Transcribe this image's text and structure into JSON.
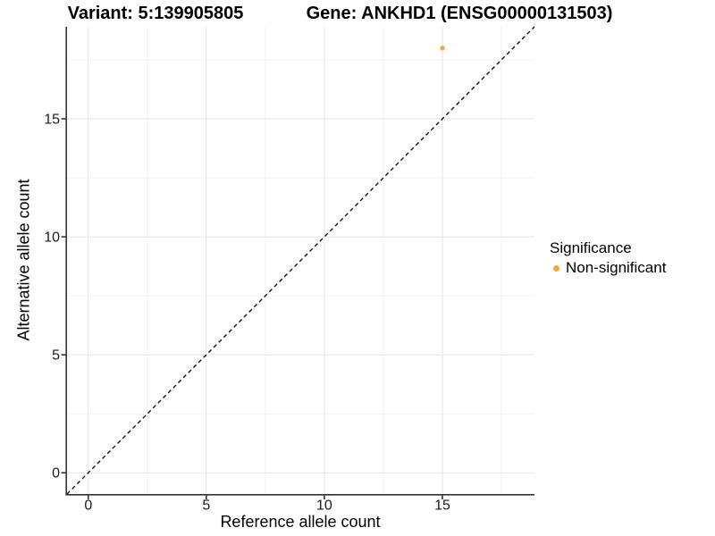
{
  "titles": {
    "variant": "Variant: 5:139905805",
    "gene": "Gene: ANKHD1 (ENSG00000131503)"
  },
  "legend": {
    "title": "Significance",
    "items": [
      {
        "label": "Non-significant",
        "color": "#FAA43C"
      }
    ]
  },
  "chart_data": {
    "type": "scatter",
    "titles": [
      "Variant: 5:139905805",
      "Gene: ANKHD1 (ENSG00000131503)"
    ],
    "xlabel": "Reference allele count",
    "ylabel": "Alternative allele count",
    "xlim": [
      -0.9,
      18.9
    ],
    "ylim": [
      -0.9,
      18.9
    ],
    "x_ticks": [
      0,
      5,
      10,
      15
    ],
    "y_ticks": [
      0,
      5,
      10,
      15
    ],
    "x_minor_ticks": [
      2.5,
      7.5,
      12.5,
      17.5
    ],
    "y_minor_ticks": [
      2.5,
      7.5,
      12.5,
      17.5
    ],
    "grid": "major and minor gridlines on white background",
    "legend_position": "right",
    "legend_title": "Significance",
    "series": [
      {
        "name": "Non-significant",
        "color": "#FAA43C",
        "points": [
          {
            "x": 15,
            "y": 18
          }
        ]
      }
    ],
    "reference_line": {
      "kind": "identity y=x",
      "style": "dashed",
      "color": "#000000"
    }
  },
  "colors": {
    "point": "#FAA43C",
    "grid_major": "#E5E5E5",
    "grid_minor": "#F2F2F2",
    "axis_line": "#333333",
    "tick_text": "#1A1A1A",
    "title_text": "#000000"
  }
}
